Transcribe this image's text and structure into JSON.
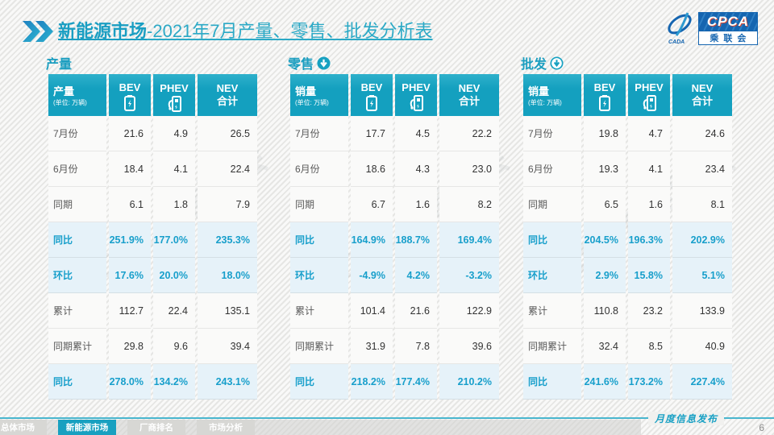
{
  "title": {
    "prefix": "新能源市场",
    "rest": "-2021年7月产量、零售、批发分析表"
  },
  "logo": {
    "cpca": "CPCA",
    "sub": "乘联会",
    "cada": "CADA"
  },
  "watermark": "CPCA乘联会",
  "colors": {
    "accent": "#14a0bf",
    "title_teal": "#1a9ec2",
    "highlight_bg": "#e6f2f9",
    "highlight_text": "#189fcb",
    "logo_blue": "#1565b0"
  },
  "chart_data": [
    {
      "type": "table",
      "section": "产量",
      "section_icon": "none",
      "metric": "产量",
      "unit": "(单位: 万辆)",
      "columns": [
        "BEV",
        "PHEV",
        "NEV\n合计"
      ],
      "rows": [
        {
          "label": "7月份",
          "values": [
            "21.6",
            "4.9",
            "26.5"
          ],
          "highlight": false
        },
        {
          "label": "6月份",
          "values": [
            "18.4",
            "4.1",
            "22.4"
          ],
          "highlight": false
        },
        {
          "label": "同期",
          "values": [
            "6.1",
            "1.8",
            "7.9"
          ],
          "highlight": false
        },
        {
          "label": "同比",
          "values": [
            "251.9%",
            "177.0%",
            "235.3%"
          ],
          "highlight": true
        },
        {
          "label": "环比",
          "values": [
            "17.6%",
            "20.0%",
            "18.0%"
          ],
          "highlight": true
        },
        {
          "label": "累计",
          "values": [
            "112.7",
            "22.4",
            "135.1"
          ],
          "highlight": false
        },
        {
          "label": "同期累计",
          "values": [
            "29.8",
            "9.6",
            "39.4"
          ],
          "highlight": false
        },
        {
          "label": "同比",
          "values": [
            "278.0%",
            "134.2%",
            "243.1%"
          ],
          "highlight": true
        }
      ]
    },
    {
      "type": "table",
      "section": "零售",
      "section_icon": "down-arrow-filled",
      "metric": "销量",
      "unit": "(单位: 万辆)",
      "columns": [
        "BEV",
        "PHEV",
        "NEV\n合计"
      ],
      "rows": [
        {
          "label": "7月份",
          "values": [
            "17.7",
            "4.5",
            "22.2"
          ],
          "highlight": false
        },
        {
          "label": "6月份",
          "values": [
            "18.6",
            "4.3",
            "23.0"
          ],
          "highlight": false
        },
        {
          "label": "同期",
          "values": [
            "6.7",
            "1.6",
            "8.2"
          ],
          "highlight": false
        },
        {
          "label": "同比",
          "values": [
            "164.9%",
            "188.7%",
            "169.4%"
          ],
          "highlight": true
        },
        {
          "label": "环比",
          "values": [
            "-4.9%",
            "4.2%",
            "-3.2%"
          ],
          "highlight": true
        },
        {
          "label": "累计",
          "values": [
            "101.4",
            "21.6",
            "122.9"
          ],
          "highlight": false
        },
        {
          "label": "同期累计",
          "values": [
            "31.9",
            "7.8",
            "39.6"
          ],
          "highlight": false
        },
        {
          "label": "同比",
          "values": [
            "218.2%",
            "177.4%",
            "210.2%"
          ],
          "highlight": true
        }
      ]
    },
    {
      "type": "table",
      "section": "批发",
      "section_icon": "down-arrow-outlined",
      "metric": "销量",
      "unit": "(单位: 万辆)",
      "columns": [
        "BEV",
        "PHEV",
        "NEV\n合计"
      ],
      "rows": [
        {
          "label": "7月份",
          "values": [
            "19.8",
            "4.7",
            "24.6"
          ],
          "highlight": false
        },
        {
          "label": "6月份",
          "values": [
            "19.3",
            "4.1",
            "23.4"
          ],
          "highlight": false
        },
        {
          "label": "同期",
          "values": [
            "6.5",
            "1.6",
            "8.1"
          ],
          "highlight": false
        },
        {
          "label": "同比",
          "values": [
            "204.5%",
            "196.3%",
            "202.9%"
          ],
          "highlight": true
        },
        {
          "label": "环比",
          "values": [
            "2.9%",
            "15.8%",
            "5.1%"
          ],
          "highlight": true
        },
        {
          "label": "累计",
          "values": [
            "110.8",
            "23.2",
            "133.9"
          ],
          "highlight": false
        },
        {
          "label": "同期累计",
          "values": [
            "32.4",
            "8.5",
            "40.9"
          ],
          "highlight": false
        },
        {
          "label": "同比",
          "values": [
            "241.6%",
            "173.2%",
            "227.4%"
          ],
          "highlight": true
        }
      ]
    }
  ],
  "footer": {
    "tabs": [
      {
        "label": "总体市场",
        "active": false
      },
      {
        "label": "新能源市场",
        "active": true
      },
      {
        "label": "厂商排名",
        "active": false
      },
      {
        "label": "市场分析",
        "active": false
      }
    ],
    "publish": "月度信息发布",
    "page": "6"
  }
}
